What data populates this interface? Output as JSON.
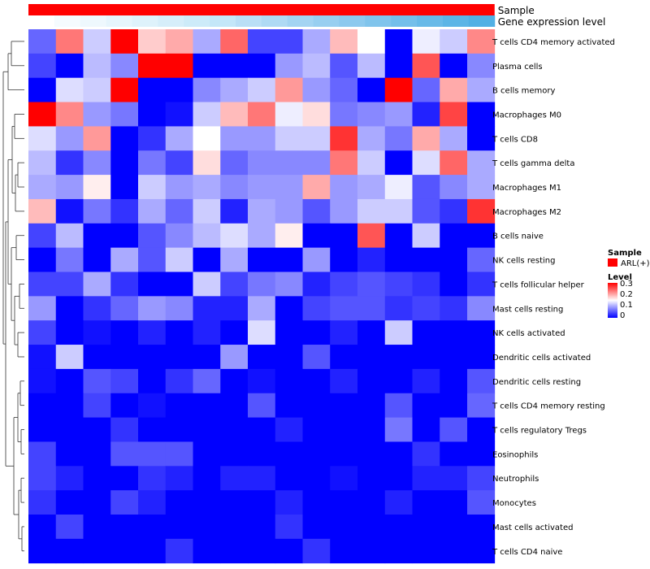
{
  "chart_data": {
    "type": "heatmap",
    "title": "",
    "annotations": [
      {
        "name": "Sample",
        "values_label": "ARL(+)",
        "color": "#ff0000"
      },
      {
        "name": "Gene expression level",
        "colors": [
          "#ffffff",
          "#f5fbfe",
          "#eef8fd",
          "#e6f5fc",
          "#def2fb",
          "#d6eefa",
          "#cdebf9",
          "#c4e7f8",
          "#badff6",
          "#afdaf4",
          "#a3d4f2",
          "#98cff0",
          "#8cc9ee",
          "#80c4ec",
          "#74bfea",
          "#68bae8",
          "#5cb5e6",
          "#52b0e4"
        ]
      }
    ],
    "rows": [
      "T cells CD4 memory activated",
      "Plasma cells",
      "B cells memory",
      "Macrophages M0",
      "T cells CD8",
      "T cells gamma delta",
      "Macrophages M1",
      "Macrophages M2",
      "B cells naive",
      "NK cells resting",
      "T cells follicular helper",
      "Mast cells resting",
      "NK cells activated",
      "Dendritic cells activated",
      "Dendritic cells resting",
      "T cells CD4 memory resting",
      "T cells regulatory  Tregs",
      "Eosinophils",
      "Neutrophils",
      "Monocytes",
      "Mast cells activated",
      "T cells CD4 naive"
    ],
    "values": [
      [
        0.06,
        0.23,
        0.12,
        0.3,
        0.18,
        0.2,
        0.1,
        0.24,
        0.04,
        0.04,
        0.1,
        0.19,
        0.15,
        0.0,
        0.14,
        0.12,
        0.22
      ],
      [
        0.04,
        0.0,
        0.11,
        0.08,
        0.3,
        0.3,
        0.0,
        0.0,
        0.0,
        0.09,
        0.11,
        0.05,
        0.11,
        0.0,
        0.25,
        0.0,
        0.08
      ],
      [
        0.0,
        0.13,
        0.12,
        0.3,
        0.0,
        0.0,
        0.08,
        0.1,
        0.12,
        0.21,
        0.09,
        0.06,
        0.0,
        0.3,
        0.06,
        0.2,
        0.1
      ],
      [
        0.3,
        0.22,
        0.09,
        0.07,
        0.0,
        0.01,
        0.12,
        0.19,
        0.23,
        0.14,
        0.17,
        0.07,
        0.08,
        0.09,
        0.02,
        0.26,
        0.0
      ],
      [
        0.13,
        0.09,
        0.21,
        0.0,
        0.03,
        0.1,
        0.15,
        0.09,
        0.09,
        0.12,
        0.12,
        0.27,
        0.1,
        0.07,
        0.2,
        0.1,
        0.0
      ],
      [
        0.11,
        0.03,
        0.08,
        0.0,
        0.07,
        0.04,
        0.17,
        0.06,
        0.08,
        0.08,
        0.08,
        0.23,
        0.12,
        0.0,
        0.13,
        0.24,
        0.1
      ],
      [
        0.1,
        0.09,
        0.16,
        0.0,
        0.12,
        0.09,
        0.1,
        0.08,
        0.09,
        0.09,
        0.2,
        0.09,
        0.1,
        0.14,
        0.05,
        0.08,
        0.1
      ],
      [
        0.19,
        0.01,
        0.07,
        0.03,
        0.1,
        0.06,
        0.12,
        0.02,
        0.1,
        0.09,
        0.05,
        0.09,
        0.12,
        0.12,
        0.05,
        0.03,
        0.27
      ],
      [
        0.04,
        0.11,
        0.0,
        0.0,
        0.05,
        0.08,
        0.11,
        0.13,
        0.1,
        0.16,
        0.0,
        0.0,
        0.25,
        0.0,
        0.12,
        0.0,
        0.0
      ],
      [
        0.0,
        0.07,
        0.0,
        0.1,
        0.05,
        0.12,
        0.0,
        0.1,
        0.0,
        0.0,
        0.09,
        0.0,
        0.02,
        0.0,
        0.0,
        0.0,
        0.06
      ],
      [
        0.04,
        0.04,
        0.1,
        0.03,
        0.0,
        0.0,
        0.12,
        0.04,
        0.07,
        0.08,
        0.02,
        0.04,
        0.05,
        0.04,
        0.03,
        0.0,
        0.03
      ],
      [
        0.09,
        0.0,
        0.03,
        0.06,
        0.09,
        0.08,
        0.02,
        0.02,
        0.1,
        0.0,
        0.04,
        0.05,
        0.05,
        0.03,
        0.04,
        0.03,
        0.08
      ],
      [
        0.04,
        0.0,
        0.01,
        0.0,
        0.02,
        0.0,
        0.02,
        0.0,
        0.13,
        0.0,
        0.0,
        0.02,
        0.0,
        0.12,
        0.0,
        0.0,
        0.0
      ],
      [
        0.01,
        0.12,
        0.0,
        0.0,
        0.0,
        0.0,
        0.0,
        0.09,
        0.0,
        0.0,
        0.05,
        0.0,
        0.0,
        0.0,
        0.0,
        0.0,
        0.0
      ],
      [
        0.01,
        0.0,
        0.05,
        0.04,
        0.0,
        0.03,
        0.06,
        0.0,
        0.01,
        0.0,
        0.0,
        0.02,
        0.0,
        0.0,
        0.02,
        0.0,
        0.05
      ],
      [
        0.0,
        0.0,
        0.04,
        0.0,
        0.01,
        0.0,
        0.0,
        0.0,
        0.05,
        0.0,
        0.0,
        0.0,
        0.0,
        0.05,
        0.0,
        0.0,
        0.06
      ],
      [
        0.0,
        0.0,
        0.0,
        0.03,
        0.0,
        0.0,
        0.0,
        0.0,
        0.0,
        0.02,
        0.0,
        0.0,
        0.0,
        0.07,
        0.0,
        0.05,
        0.0
      ],
      [
        0.04,
        0.0,
        0.0,
        0.05,
        0.05,
        0.05,
        0.0,
        0.0,
        0.0,
        0.0,
        0.0,
        0.0,
        0.0,
        0.0,
        0.03,
        0.0,
        0.0
      ],
      [
        0.04,
        0.02,
        0.0,
        0.0,
        0.03,
        0.02,
        0.0,
        0.02,
        0.02,
        0.0,
        0.0,
        0.01,
        0.0,
        0.0,
        0.02,
        0.02,
        0.04
      ],
      [
        0.03,
        0.0,
        0.0,
        0.04,
        0.02,
        0.0,
        0.0,
        0.0,
        0.0,
        0.02,
        0.0,
        0.0,
        0.0,
        0.02,
        0.0,
        0.0,
        0.05
      ],
      [
        0.0,
        0.04,
        0.0,
        0.0,
        0.0,
        0.0,
        0.0,
        0.0,
        0.0,
        0.03,
        0.0,
        0.0,
        0.0,
        0.0,
        0.0,
        0.0,
        0.0
      ],
      [
        0.0,
        0.0,
        0.0,
        0.0,
        0.0,
        0.03,
        0.0,
        0.0,
        0.0,
        0.0,
        0.03,
        0.0,
        0.0,
        0.0,
        0.0,
        0.0,
        0.0
      ]
    ],
    "color_scale": {
      "min": 0,
      "mid": 0.15,
      "max": 0.3,
      "low_color": "#0000ff",
      "mid_color": "#ffffff",
      "high_color": "#ff0000"
    },
    "legend": {
      "position": "right",
      "sample_title": "Sample",
      "sample_entry": "ARL(+)",
      "level_title": "Level",
      "ticks": [
        "0.3",
        "0.2",
        "0.1",
        "0"
      ]
    },
    "dendrogram": {
      "side": "left"
    }
  }
}
